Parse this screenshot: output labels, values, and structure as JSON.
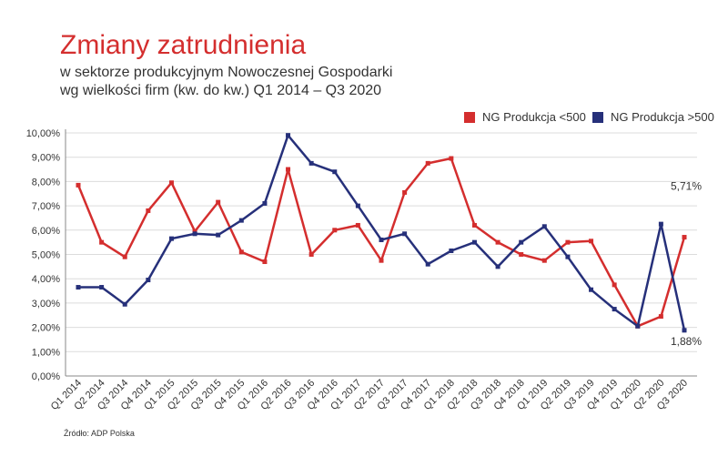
{
  "header": {
    "title": "Zmiany zatrudnienia",
    "subtitle_line1": "w sektorze produkcyjnym Nowoczesnej Gospodarki",
    "subtitle_line2": "wg wielkości firm (kw. do kw.) Q1 2014 – Q3 2020"
  },
  "footer": {
    "source": "Źródło: ADP Polska"
  },
  "chart_data": {
    "type": "line",
    "title": "Zmiany zatrudnienia",
    "xlabel": "",
    "ylabel": "",
    "ylim": [
      0,
      10
    ],
    "yticks": [
      "0,00%",
      "1,00%",
      "2,00%",
      "3,00%",
      "4,00%",
      "5,00%",
      "6,00%",
      "7,00%",
      "8,00%",
      "9,00%",
      "10,00%"
    ],
    "grid": true,
    "legend_position": "top-right",
    "x": [
      "Q1 2014",
      "Q2 2014",
      "Q3 2014",
      "Q4 2014",
      "Q1 2015",
      "Q2 2015",
      "Q3 2015",
      "Q4 2015",
      "Q1 2016",
      "Q2 2016",
      "Q3 2016",
      "Q4 2016",
      "Q1 2017",
      "Q2 2017",
      "Q3 2017",
      "Q4 2017",
      "Q1 2018",
      "Q2 2018",
      "Q3 2018",
      "Q4 2018",
      "Q1 2019",
      "Q2 2019",
      "Q3 2019",
      "Q4 2019",
      "Q1 2020",
      "Q2 2020",
      "Q3 2020"
    ],
    "series": [
      {
        "name": "NG Produkcja <500",
        "color": "#d42e2e",
        "values": [
          7.85,
          5.5,
          4.9,
          6.8,
          7.95,
          5.95,
          7.15,
          5.1,
          4.7,
          8.5,
          5.0,
          6.0,
          6.2,
          4.75,
          7.55,
          8.75,
          8.95,
          6.2,
          5.5,
          5.0,
          4.75,
          5.5,
          5.55,
          3.75,
          2.05,
          2.45,
          5.71
        ]
      },
      {
        "name": "NG Produkcja >500",
        "color": "#26307a",
        "values": [
          3.65,
          3.65,
          2.95,
          3.95,
          5.65,
          5.85,
          5.8,
          6.4,
          7.1,
          9.9,
          8.75,
          8.4,
          7.0,
          5.6,
          5.85,
          4.6,
          5.15,
          5.5,
          4.5,
          5.5,
          6.15,
          4.9,
          3.55,
          2.75,
          2.05,
          6.25,
          1.88
        ]
      }
    ],
    "annotations": [
      {
        "text": "5,71%",
        "series": 0,
        "index": 26
      },
      {
        "text": "1,88%",
        "series": 1,
        "index": 26
      }
    ]
  }
}
